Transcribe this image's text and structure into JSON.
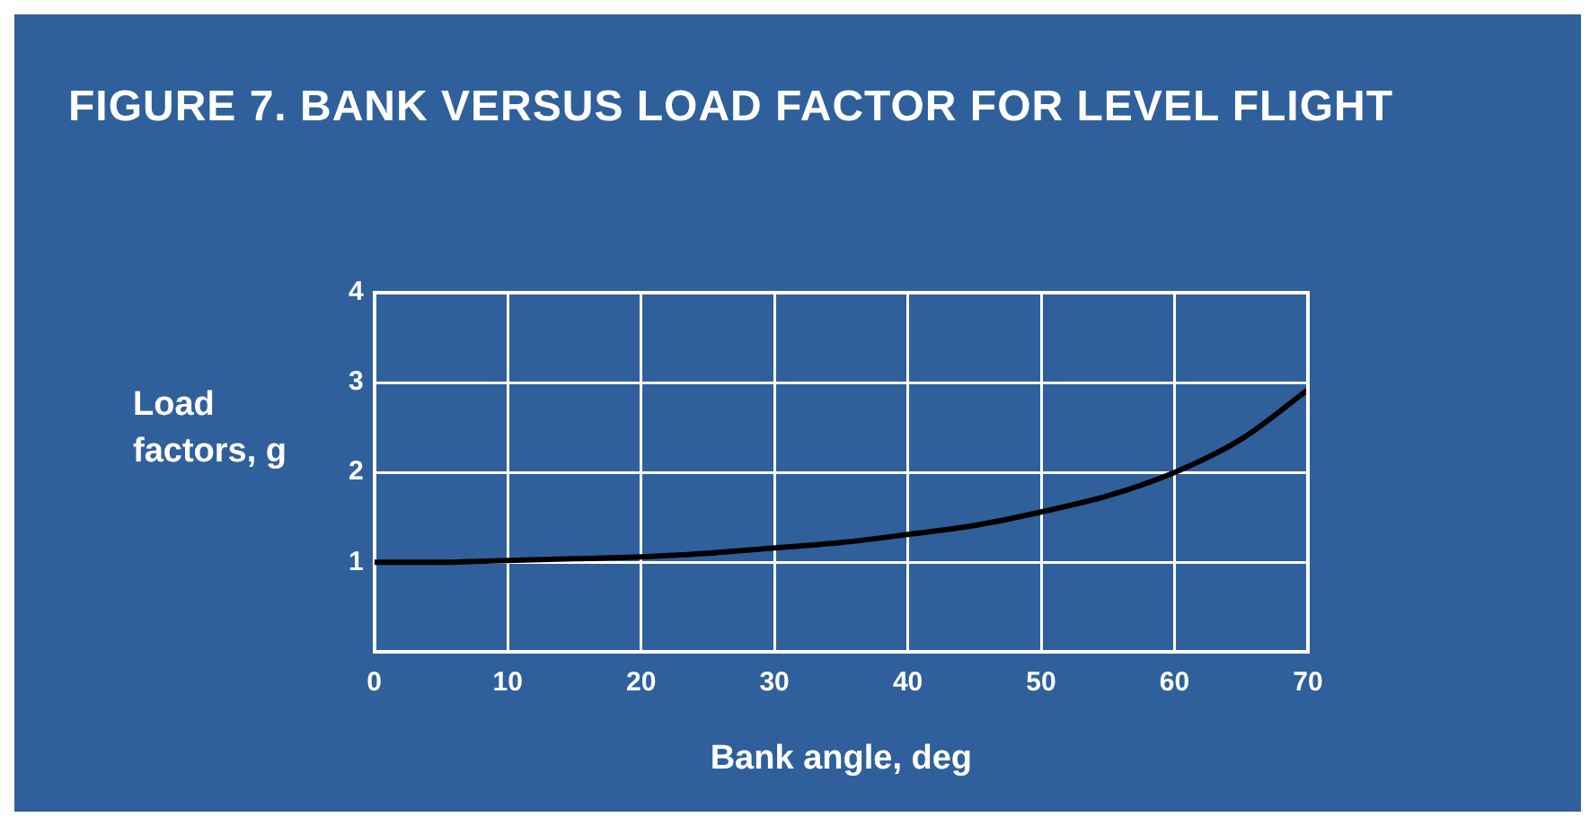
{
  "chart_data": {
    "type": "line",
    "title": "FIGURE 7. BANK VERSUS LOAD FACTOR FOR LEVEL FLIGHT",
    "xlabel": "Bank angle, deg",
    "ylabel": "Load\nfactors, g",
    "x": [
      0,
      5,
      10,
      15,
      20,
      25,
      30,
      35,
      40,
      45,
      50,
      55,
      60,
      65,
      70
    ],
    "series": [
      {
        "color": "#000000",
        "values": [
          1,
          1.0,
          1.02,
          1.04,
          1.06,
          1.1,
          1.16,
          1.22,
          1.31,
          1.41,
          1.56,
          1.74,
          2,
          2.37,
          2.92
        ]
      }
    ],
    "xlim": [
      0,
      70
    ],
    "xticks": [
      0,
      10,
      20,
      30,
      40,
      50,
      60,
      70
    ],
    "ylim": [
      0,
      4
    ],
    "yticks": [
      {
        "value": 0,
        "label": null
      },
      1,
      2,
      3,
      4
    ],
    "grid": true,
    "legend": false,
    "marker": "none",
    "line_style": "solid"
  }
}
